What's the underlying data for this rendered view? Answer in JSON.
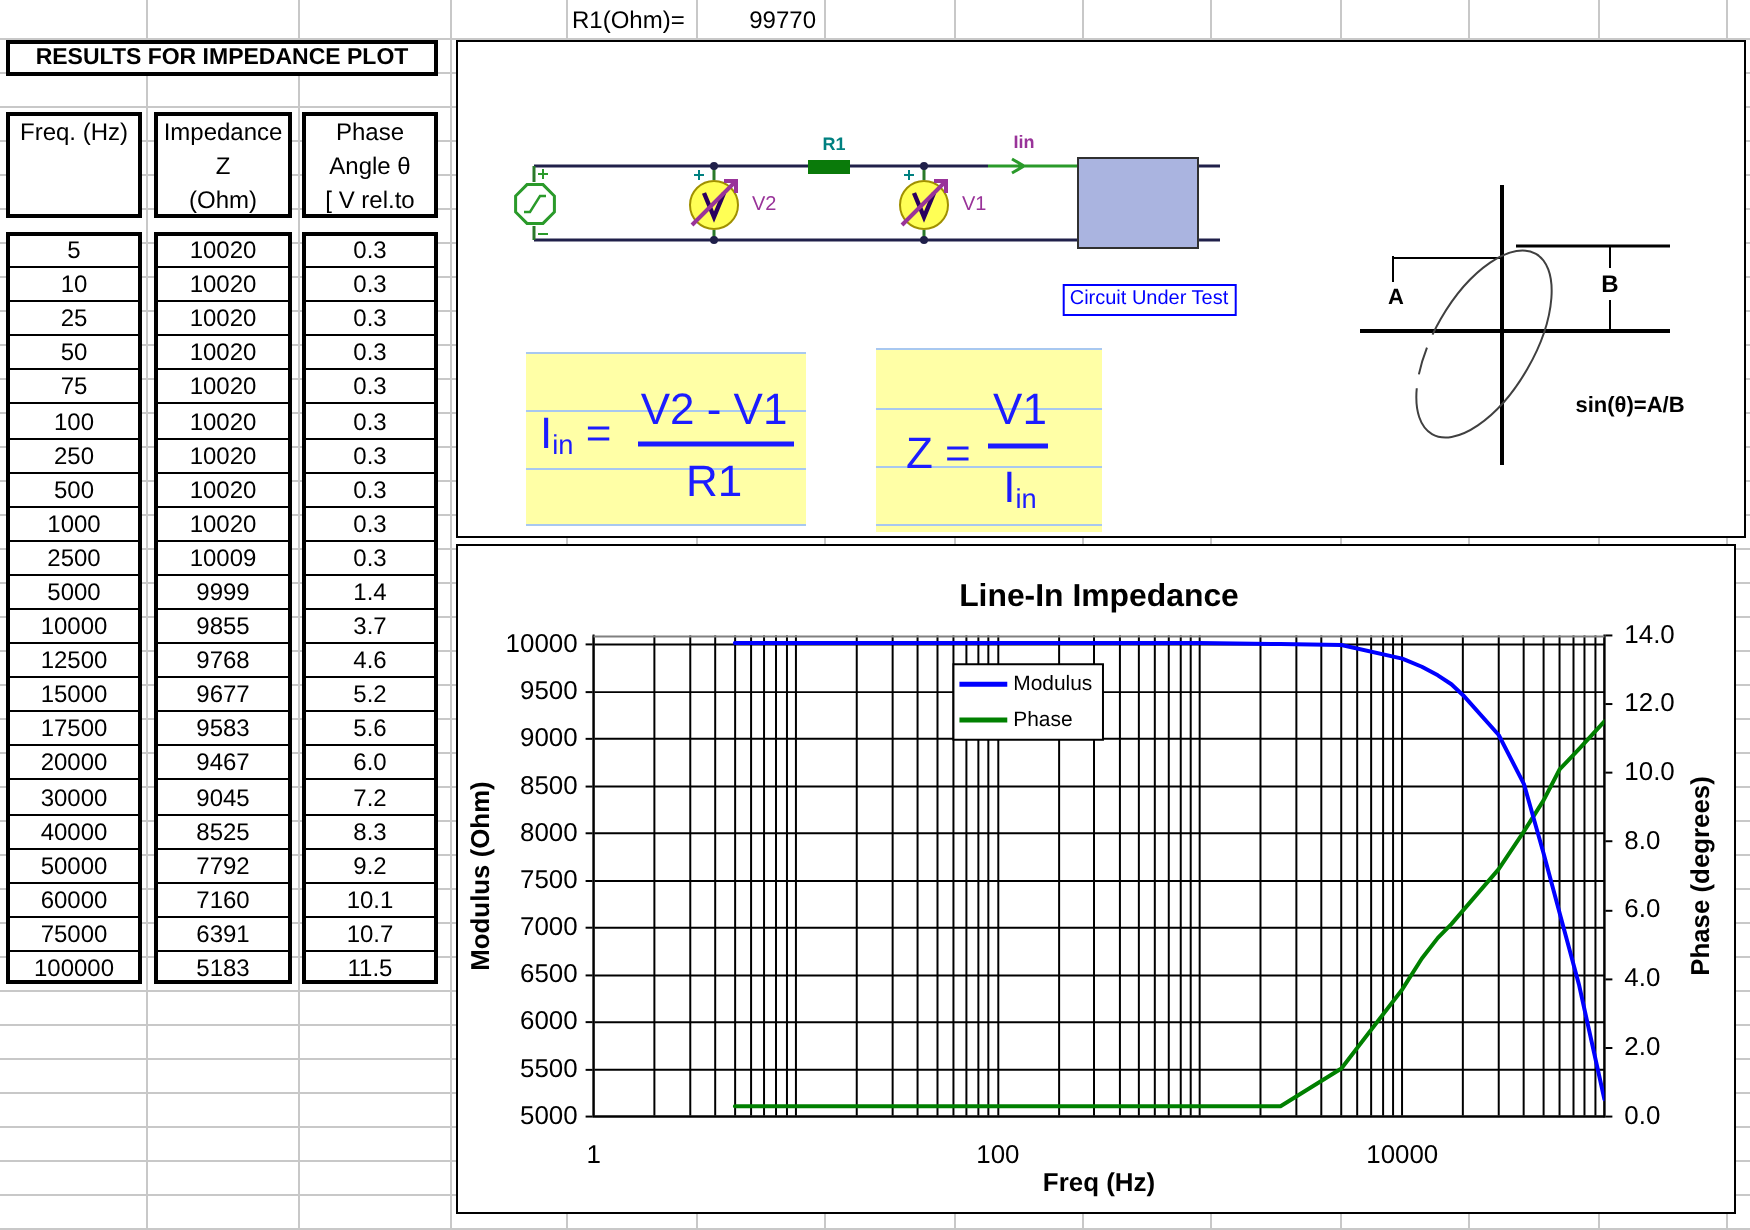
{
  "chart_data": [
    {
      "type": "other",
      "title": "RESULTS FOR IMPEDANCE PLOT",
      "annotations": [
        "Freq. (Hz)",
        "Impedance\nZ\n(Ohm)",
        "Phase\nAngle θ\n[ V rel.to",
        "5",
        "10020",
        "0.3",
        "10",
        "10020",
        "0.3",
        "25",
        "10020",
        "0.3",
        "50",
        "10020",
        "0.3",
        "75",
        "10020",
        "0.3",
        "100",
        "10020",
        "0.3",
        "250",
        "10020",
        "0.3",
        "500",
        "10020",
        "0.3",
        "1000",
        "10020",
        "0.3",
        "2500",
        "10009",
        "0.3",
        "5000",
        "9999",
        "1.4",
        "10000",
        "9855",
        "3.7",
        "12500",
        "9768",
        "4.6",
        "15000",
        "9677",
        "5.2",
        "17500",
        "9583",
        "5.6",
        "20000",
        "9467",
        "6.0",
        "30000",
        "9045",
        "7.2",
        "40000",
        "8525",
        "8.3",
        "50000",
        "7792",
        "9.2",
        "60000",
        "7160",
        "10.1",
        "75000",
        "6391",
        "10.7",
        "100000",
        "5183",
        "11.5"
      ]
    },
    {
      "type": "other",
      "annotations": [
        "R1(Ohm)=",
        "99770",
        "R1",
        "V2",
        "V1",
        "Iin",
        "Circuit Under Test",
        "I$_{in}$ =",
        "V2 - V1",
        "R1",
        "Z =",
        "V1",
        "I$_{in}$",
        "A",
        "B",
        "sin(θ)=A/B"
      ]
    },
    {
      "type": "line",
      "title": "Line-In Impedance",
      "xlabel": "Freq (Hz)",
      "ylabel": "Modulus (Ohm)",
      "y2label": "Phase (degrees)",
      "x": [
        5,
        10,
        25,
        50,
        75,
        100,
        250,
        500,
        1000,
        2500,
        5000,
        10000,
        12500,
        15000,
        17500,
        20000,
        30000,
        40000,
        50000,
        60000,
        75000,
        100000
      ],
      "series": [
        {
          "name": "Modulus",
          "color": "#0000ff",
          "values": [
            10020,
            10020,
            10020,
            10020,
            10020,
            10020,
            10020,
            10020,
            10020,
            10009,
            9999,
            9855,
            9768,
            9677,
            9583,
            9467,
            9045,
            8525,
            7792,
            7160,
            6391,
            5183
          ]
        },
        {
          "name": "Phase",
          "color": "#008000",
          "axis": "y2",
          "values": [
            0.3,
            0.3,
            0.3,
            0.3,
            0.3,
            0.3,
            0.3,
            0.3,
            0.3,
            0.3,
            1.4,
            3.7,
            4.6,
            5.2,
            5.6,
            6.0,
            7.2,
            8.3,
            9.2,
            10.1,
            10.7,
            11.5
          ]
        }
      ],
      "log": "x",
      "xlim": [
        1,
        100000
      ],
      "xticks": [
        1,
        {
          "value": 2,
          "label": null
        },
        {
          "value": 3,
          "label": null
        },
        {
          "value": 4,
          "label": null
        },
        {
          "value": 5,
          "label": null
        },
        {
          "value": 6,
          "label": null
        },
        {
          "value": 7,
          "label": null
        },
        {
          "value": 8,
          "label": null
        },
        {
          "value": 9,
          "label": null
        },
        {
          "value": 10,
          "label": null
        },
        {
          "value": 20,
          "label": null
        },
        {
          "value": 30,
          "label": null
        },
        {
          "value": 40,
          "label": null
        },
        {
          "value": 50,
          "label": null
        },
        {
          "value": 60,
          "label": null
        },
        {
          "value": 70,
          "label": null
        },
        {
          "value": 80,
          "label": null
        },
        {
          "value": 90,
          "label": null
        },
        100,
        {
          "value": 200,
          "label": null
        },
        {
          "value": 300,
          "label": null
        },
        {
          "value": 400,
          "label": null
        },
        {
          "value": 500,
          "label": null
        },
        {
          "value": 600,
          "label": null
        },
        {
          "value": 700,
          "label": null
        },
        {
          "value": 800,
          "label": null
        },
        {
          "value": 900,
          "label": null
        },
        {
          "value": 1000,
          "label": null
        },
        {
          "value": 2000,
          "label": null
        },
        {
          "value": 3000,
          "label": null
        },
        {
          "value": 4000,
          "label": null
        },
        {
          "value": 5000,
          "label": null
        },
        {
          "value": 6000,
          "label": null
        },
        {
          "value": 7000,
          "label": null
        },
        {
          "value": 8000,
          "label": null
        },
        {
          "value": 9000,
          "label": null
        },
        10000,
        {
          "value": 20000,
          "label": null
        },
        {
          "value": 30000,
          "label": null
        },
        {
          "value": 40000,
          "label": null
        },
        {
          "value": 50000,
          "label": null
        },
        {
          "value": 60000,
          "label": null
        },
        {
          "value": 70000,
          "label": null
        },
        {
          "value": 80000,
          "label": null
        },
        {
          "value": 90000,
          "label": null
        },
        {
          "value": 100000,
          "label": null
        }
      ],
      "ylim": [
        5000,
        10100
      ],
      "yticks": [
        5000,
        5500,
        6000,
        6500,
        7000,
        7500,
        8000,
        8500,
        9000,
        9500,
        10000
      ],
      "y2lim": [
        0,
        14
      ],
      "y2ticks": [
        {
          "value": 0,
          "label": "0.0"
        },
        {
          "value": 2,
          "label": "2.0"
        },
        {
          "value": 4,
          "label": "4.0"
        },
        {
          "value": 6,
          "label": "6.0"
        },
        {
          "value": 8,
          "label": "8.0"
        },
        {
          "value": 10,
          "label": "10.0"
        },
        {
          "value": 12,
          "label": "12.0"
        },
        {
          "value": 14,
          "label": "14.0"
        }
      ],
      "grid": true,
      "legend": "top",
      "line_style": "solid"
    }
  ]
}
